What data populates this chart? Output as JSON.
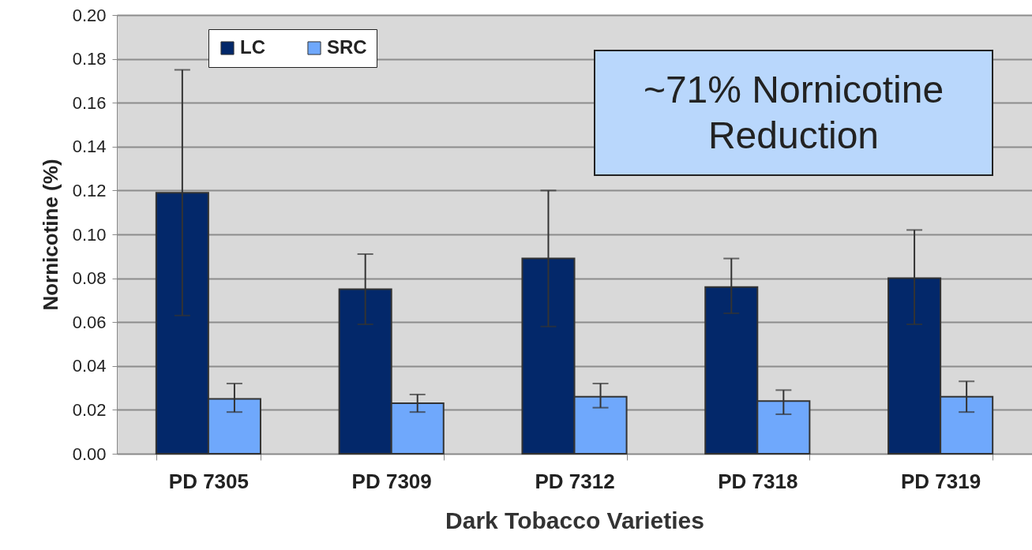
{
  "chart_data": {
    "type": "bar",
    "xlabel": "Dark Tobacco Varieties",
    "ylabel": "Nornicotine (%)",
    "categories": [
      "PD 7305",
      "PD 7309",
      "PD 7312",
      "PD 7318",
      "PD 7319"
    ],
    "series": [
      {
        "name": "LC",
        "color": "#03286a",
        "values": [
          0.119,
          0.075,
          0.089,
          0.076,
          0.08
        ],
        "errors": [
          [
            0.063,
            0.175
          ],
          [
            0.059,
            0.091
          ],
          [
            0.058,
            0.12
          ],
          [
            0.064,
            0.089
          ],
          [
            0.059,
            0.102
          ]
        ]
      },
      {
        "name": "SRC",
        "color": "#6fa8fc",
        "values": [
          0.025,
          0.023,
          0.026,
          0.024,
          0.026
        ],
        "errors": [
          [
            0.019,
            0.032
          ],
          [
            0.019,
            0.027
          ],
          [
            0.021,
            0.032
          ],
          [
            0.018,
            0.029
          ],
          [
            0.019,
            0.033
          ]
        ]
      }
    ],
    "ylim": [
      0,
      0.2
    ],
    "yticks": [
      {
        "value": 0,
        "label": "0.00"
      },
      {
        "value": 0.02,
        "label": "0.02"
      },
      {
        "value": 0.04,
        "label": "0.04"
      },
      {
        "value": 0.06,
        "label": "0.06"
      },
      {
        "value": 0.08,
        "label": "0.08"
      },
      {
        "value": 0.1,
        "label": "0.10"
      },
      {
        "value": 0.12,
        "label": "0.12"
      },
      {
        "value": 0.14,
        "label": "0.14"
      },
      {
        "value": 0.16,
        "label": "0.16"
      },
      {
        "value": 0.18,
        "label": "0.18"
      },
      {
        "value": 0.2,
        "label": "0.20"
      }
    ],
    "grid": "y",
    "legend": "top left",
    "annotations": [
      "~71% Nornicotine Reduction"
    ]
  }
}
